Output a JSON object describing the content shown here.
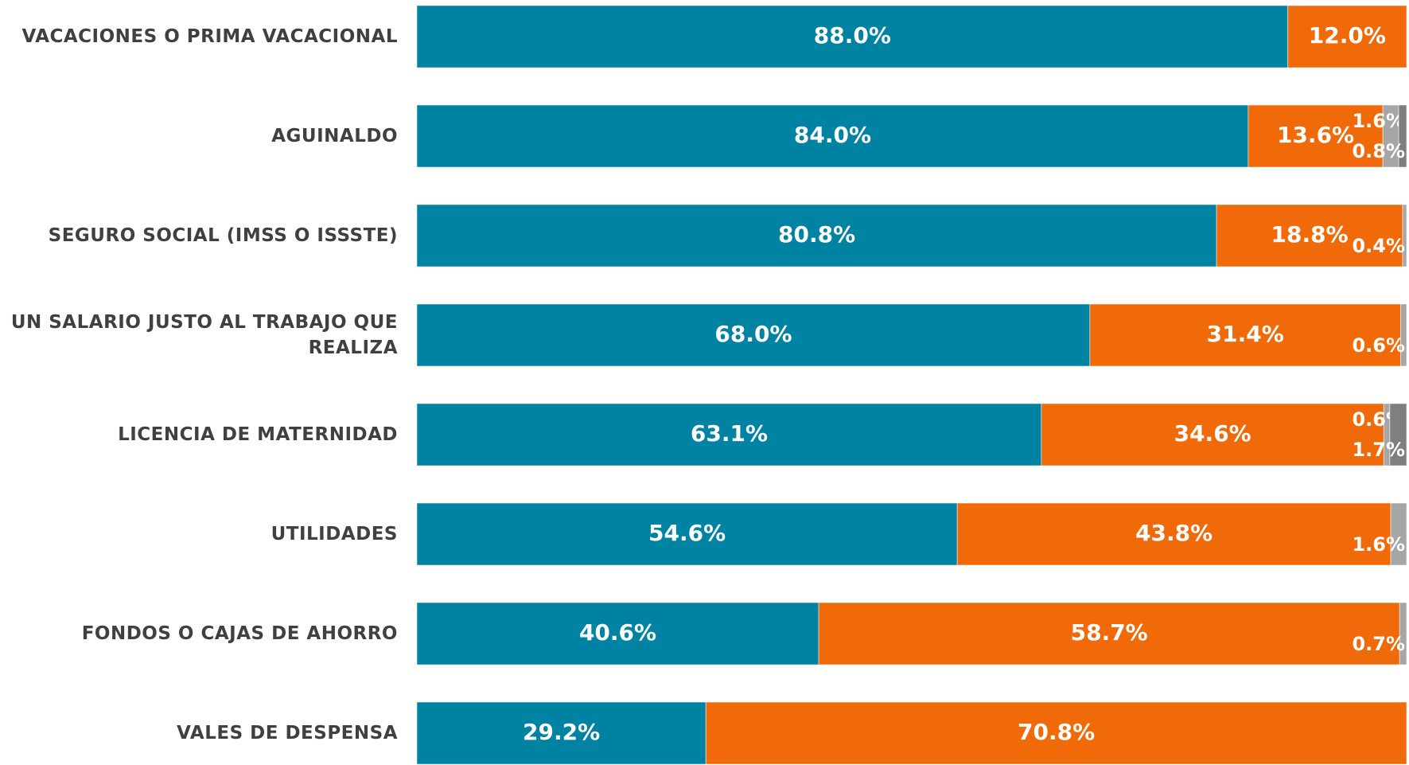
{
  "chart_data": {
    "type": "stacked-bar-horizontal",
    "categories": [
      "VACACIONES O PRIMA VACACIONAL",
      "AGUINALDO",
      "SEGURO SOCIAL (IMSS O ISSSTE)",
      "UN SALARIO JUSTO AL TRABAJO QUE REALIZA",
      "LICENCIA DE MATERNIDAD",
      "UTILIDADES",
      "FONDOS O CAJAS DE AHORRO",
      "VALES DE DESPENSA"
    ],
    "xlim": [
      0,
      100
    ],
    "series": [
      {
        "color": "#0083a3",
        "values": [
          88.0,
          84.0,
          80.8,
          68.0,
          63.1,
          54.6,
          40.6,
          29.2
        ],
        "value_labels": [
          "88.0%",
          "84.0%",
          "80.8%",
          "68.0%",
          "63.1%",
          "54.6%",
          "40.6%",
          "29.2%"
        ]
      },
      {
        "color": "#f06a0a",
        "values": [
          12.0,
          13.6,
          18.8,
          31.4,
          34.6,
          43.8,
          58.7,
          70.8
        ],
        "value_labels": [
          "12.0%",
          "13.6%",
          "18.8%",
          "31.4%",
          "34.6%",
          "43.8%",
          "58.7%",
          "70.8%"
        ]
      },
      {
        "color": "#a6a6a6",
        "values": [
          null,
          1.6,
          0.4,
          0.6,
          0.6,
          1.6,
          0.7,
          null
        ],
        "value_labels": [
          null,
          "1.6%",
          "0.4%",
          "0.6%",
          "0.6%",
          "1.6%",
          "0.7%",
          null
        ]
      },
      {
        "color": "#7f7f7f",
        "values": [
          null,
          0.8,
          null,
          null,
          1.7,
          null,
          null,
          null
        ],
        "value_labels": [
          null,
          "0.8%",
          null,
          null,
          "1.7%",
          null,
          null,
          null
        ]
      }
    ]
  }
}
